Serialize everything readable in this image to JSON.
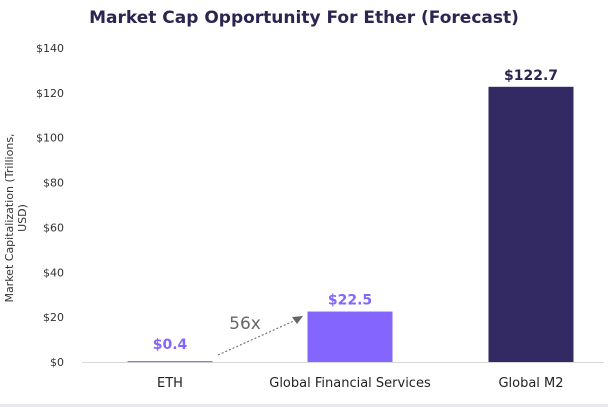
{
  "chart_data": {
    "type": "bar",
    "title": "Market Cap Opportunity For Ether (Forecast)",
    "xlabel": "",
    "ylabel": "Market Capitalization (Trillions, USD)",
    "ylim": [
      0,
      140
    ],
    "yticks": [
      "$0",
      "$20",
      "$40",
      "$60",
      "$80",
      "$100",
      "$120",
      "$140"
    ],
    "ytick_values": [
      0,
      20,
      40,
      60,
      80,
      100,
      120,
      140
    ],
    "categories": [
      "ETH",
      "Global Financial Services",
      "Global M2"
    ],
    "values": [
      0.4,
      22.5,
      122.7
    ],
    "data_labels": [
      "$0.4",
      "$22.5",
      "$122.7"
    ],
    "bar_colors": [
      "#8466ff",
      "#8466ff",
      "#342a63"
    ],
    "label_colors": [
      "#8466ff",
      "#8466ff",
      "#2b2550"
    ],
    "grid": false,
    "annotation": {
      "text": "56x",
      "from": "ETH",
      "to": "Global Financial Services",
      "style": "dotted-arrow"
    }
  }
}
